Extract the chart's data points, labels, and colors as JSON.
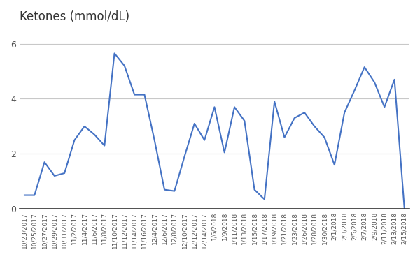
{
  "title": "Ketones (mmol/dL)",
  "line_color": "#4472C4",
  "line_width": 1.5,
  "background_color": "#ffffff",
  "grid_color": "#c8c8c8",
  "ylim": [
    0,
    6.5
  ],
  "yticks": [
    0,
    2,
    4,
    6
  ],
  "points": [
    [
      "10/23/2017",
      0.5
    ],
    [
      "10/25/2017",
      0.5
    ],
    [
      "10/27/2017",
      1.7
    ],
    [
      "10/29/2017",
      1.2
    ],
    [
      "10/31/2017",
      1.3
    ],
    [
      "11/2/2017",
      2.5
    ],
    [
      "11/4/2017",
      3.0
    ],
    [
      "11/6/2017",
      2.7
    ],
    [
      "11/8/2017",
      2.3
    ],
    [
      "11/10/2017",
      5.65
    ],
    [
      "11/12/2017",
      5.2
    ],
    [
      "11/14/2017",
      4.15
    ],
    [
      "11/16/2017",
      4.15
    ],
    [
      "12/4/2017",
      2.5
    ],
    [
      "12/6/2017",
      0.7
    ],
    [
      "12/8/2017",
      0.65
    ],
    [
      "12/10/2017",
      1.9
    ],
    [
      "12/12/2017",
      3.1
    ],
    [
      "12/14/2017",
      2.5
    ],
    [
      "1/6/2018",
      3.7
    ],
    [
      "1/9/2018",
      2.05
    ],
    [
      "1/11/2018",
      3.7
    ],
    [
      "1/13/2018",
      3.2
    ],
    [
      "1/15/2018",
      0.7
    ],
    [
      "1/17/2018",
      0.35
    ],
    [
      "1/19/2018",
      3.9
    ],
    [
      "1/21/2018",
      2.6
    ],
    [
      "1/23/2018",
      3.3
    ],
    [
      "1/26/2018",
      3.5
    ],
    [
      "1/28/2018",
      3.0
    ],
    [
      "1/30/2018",
      2.6
    ],
    [
      "2/1/2018",
      1.6
    ],
    [
      "2/3/2018",
      3.5
    ],
    [
      "2/5/2018",
      4.3
    ],
    [
      "2/7/2018",
      5.15
    ],
    [
      "2/9/2018",
      4.6
    ],
    [
      "2/11/2018",
      3.7
    ],
    [
      "2/13/2018",
      4.7
    ],
    [
      "2/15/2018",
      0.0
    ]
  ]
}
